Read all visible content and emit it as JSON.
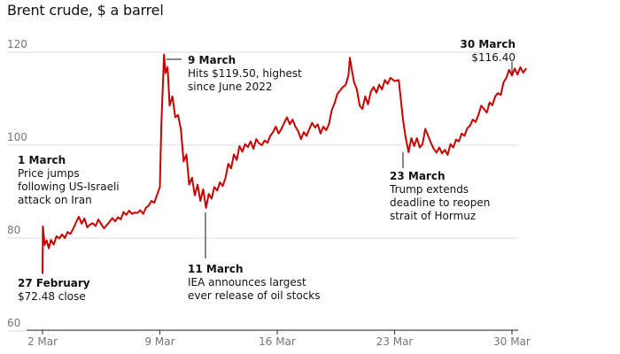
{
  "chart_title": "Brent crude, $ a barrel",
  "chart_data": {
    "type": "line",
    "title": "Brent crude, $ a barrel",
    "xlabel": "",
    "ylabel": "",
    "ylim": [
      60,
      123
    ],
    "xlim": [
      "2026-03-02",
      "2026-03-31"
    ],
    "x_ticks": [
      {
        "date": "2026-03-02",
        "label": "2 Mar"
      },
      {
        "date": "2026-03-09",
        "label": "9 Mar"
      },
      {
        "date": "2026-03-16",
        "label": "16 Mar"
      },
      {
        "date": "2026-03-23",
        "label": "23 Mar"
      },
      {
        "date": "2026-03-30",
        "label": "30 Mar"
      }
    ],
    "y_ticks": [
      60,
      80,
      100,
      120
    ],
    "grid": "horizontal",
    "colors": {
      "line": "#c70000",
      "grid": "#dcdcdc",
      "axis": "#333333",
      "ticks": "#767676",
      "text": "#121212"
    },
    "series": [
      {
        "values": [
          [
            "2026-03-02 00:00",
            72.48
          ],
          [
            "2026-03-02 00:30",
            82.5
          ],
          [
            "2026-03-02 03:00",
            78.5
          ],
          [
            "2026-03-02 06:00",
            79.5
          ],
          [
            "2026-03-02 09:00",
            77.8
          ],
          [
            "2026-03-02 12:00",
            79.6
          ],
          [
            "2026-03-02 16:00",
            78.6
          ],
          [
            "2026-03-02 20:00",
            80.4
          ],
          [
            "2026-03-03 00:00",
            79.9
          ],
          [
            "2026-03-03 04:00",
            80.8
          ],
          [
            "2026-03-03 08:00",
            80.0
          ],
          [
            "2026-03-03 12:00",
            81.3
          ],
          [
            "2026-03-03 16:00",
            80.9
          ],
          [
            "2026-03-03 20:00",
            82.0
          ],
          [
            "2026-03-04 00:00",
            83.4
          ],
          [
            "2026-03-04 04:00",
            84.6
          ],
          [
            "2026-03-04 08:00",
            83.1
          ],
          [
            "2026-03-04 12:00",
            84.2
          ],
          [
            "2026-03-04 16:00",
            82.3
          ],
          [
            "2026-03-04 20:00",
            82.9
          ],
          [
            "2026-03-05 00:00",
            83.2
          ],
          [
            "2026-03-05 04:00",
            82.6
          ],
          [
            "2026-03-05 08:00",
            84.0
          ],
          [
            "2026-03-05 12:00",
            83.0
          ],
          [
            "2026-03-05 16:00",
            82.1
          ],
          [
            "2026-03-05 20:00",
            82.8
          ],
          [
            "2026-03-06 00:00",
            83.5
          ],
          [
            "2026-03-06 04:00",
            84.3
          ],
          [
            "2026-03-06 08:00",
            83.6
          ],
          [
            "2026-03-06 12:00",
            84.5
          ],
          [
            "2026-03-06 16:00",
            84.0
          ],
          [
            "2026-03-06 20:00",
            85.6
          ],
          [
            "2026-03-07 00:00",
            85.0
          ],
          [
            "2026-03-07 04:00",
            85.9
          ],
          [
            "2026-03-07 08:00",
            85.2
          ],
          [
            "2026-03-07 12:00",
            85.5
          ],
          [
            "2026-03-07 16:00",
            85.4
          ],
          [
            "2026-03-07 20:00",
            86.0
          ],
          [
            "2026-03-08 00:00",
            85.2
          ],
          [
            "2026-03-08 04:00",
            86.5
          ],
          [
            "2026-03-08 08:00",
            87.0
          ],
          [
            "2026-03-08 12:00",
            88.0
          ],
          [
            "2026-03-08 16:00",
            87.6
          ],
          [
            "2026-03-08 20:00",
            89.3
          ],
          [
            "2026-03-09 00:00",
            91.0
          ],
          [
            "2026-03-09 02:00",
            104.0
          ],
          [
            "2026-03-09 04:00",
            112.0
          ],
          [
            "2026-03-09 06:00",
            119.5
          ],
          [
            "2026-03-09 08:00",
            115.5
          ],
          [
            "2026-03-09 11:00",
            116.8
          ],
          [
            "2026-03-09 14:00",
            108.5
          ],
          [
            "2026-03-09 18:00",
            110.5
          ],
          [
            "2026-03-09 22:00",
            106.0
          ],
          [
            "2026-03-10 02:00",
            106.5
          ],
          [
            "2026-03-10 06:00",
            103.5
          ],
          [
            "2026-03-10 10:00",
            96.5
          ],
          [
            "2026-03-10 14:00",
            98.0
          ],
          [
            "2026-03-10 18:00",
            91.5
          ],
          [
            "2026-03-10 22:00",
            93.0
          ],
          [
            "2026-03-11 02:00",
            89.2
          ],
          [
            "2026-03-11 06:00",
            91.5
          ],
          [
            "2026-03-11 10:00",
            88.0
          ],
          [
            "2026-03-11 14:00",
            90.5
          ],
          [
            "2026-03-11 18:00",
            86.5
          ],
          [
            "2026-03-11 22:00",
            89.5
          ],
          [
            "2026-03-12 02:00",
            88.5
          ],
          [
            "2026-03-12 06:00",
            91.0
          ],
          [
            "2026-03-12 10:00",
            90.2
          ],
          [
            "2026-03-12 14:00",
            92.0
          ],
          [
            "2026-03-12 18:00",
            91.2
          ],
          [
            "2026-03-12 22:00",
            93.0
          ],
          [
            "2026-03-13 02:00",
            96.0
          ],
          [
            "2026-03-13 06:00",
            95.0
          ],
          [
            "2026-03-13 10:00",
            98.0
          ],
          [
            "2026-03-13 14:00",
            96.8
          ],
          [
            "2026-03-13 18:00",
            99.8
          ],
          [
            "2026-03-13 22:00",
            98.6
          ],
          [
            "2026-03-14 02:00",
            100.2
          ],
          [
            "2026-03-14 06:00",
            99.6
          ],
          [
            "2026-03-14 10:00",
            100.8
          ],
          [
            "2026-03-14 14:00",
            99.2
          ],
          [
            "2026-03-14 18:00",
            101.3
          ],
          [
            "2026-03-14 22:00",
            100.4
          ],
          [
            "2026-03-15 02:00",
            100.0
          ],
          [
            "2026-03-15 06:00",
            101.0
          ],
          [
            "2026-03-15 10:00",
            100.5
          ],
          [
            "2026-03-15 14:00",
            102.0
          ],
          [
            "2026-03-15 18:00",
            102.8
          ],
          [
            "2026-03-15 22:00",
            104.0
          ],
          [
            "2026-03-16 02:00",
            102.5
          ],
          [
            "2026-03-16 06:00",
            103.5
          ],
          [
            "2026-03-16 10:00",
            104.8
          ],
          [
            "2026-03-16 14:00",
            106.0
          ],
          [
            "2026-03-16 18:00",
            104.5
          ],
          [
            "2026-03-16 22:00",
            105.5
          ],
          [
            "2026-03-17 02:00",
            104.0
          ],
          [
            "2026-03-17 06:00",
            103.0
          ],
          [
            "2026-03-17 10:00",
            101.3
          ],
          [
            "2026-03-17 14:00",
            102.8
          ],
          [
            "2026-03-17 18:00",
            102.0
          ],
          [
            "2026-03-17 22:00",
            103.5
          ],
          [
            "2026-03-18 02:00",
            104.8
          ],
          [
            "2026-03-18 06:00",
            103.8
          ],
          [
            "2026-03-18 10:00",
            104.5
          ],
          [
            "2026-03-18 14:00",
            102.5
          ],
          [
            "2026-03-18 18:00",
            104.0
          ],
          [
            "2026-03-18 22:00",
            103.2
          ],
          [
            "2026-03-19 02:00",
            104.5
          ],
          [
            "2026-03-19 06:00",
            107.5
          ],
          [
            "2026-03-19 10:00",
            109.0
          ],
          [
            "2026-03-19 14:00",
            111.0
          ],
          [
            "2026-03-19 18:00",
            111.8
          ],
          [
            "2026-03-19 22:00",
            112.5
          ],
          [
            "2026-03-20 02:00",
            113.0
          ],
          [
            "2026-03-20 06:00",
            115.0
          ],
          [
            "2026-03-20 08:00",
            118.8
          ],
          [
            "2026-03-20 11:00",
            116.0
          ],
          [
            "2026-03-20 14:00",
            113.5
          ],
          [
            "2026-03-20 18:00",
            112.0
          ],
          [
            "2026-03-20 22:00",
            108.5
          ],
          [
            "2026-03-21 02:00",
            107.8
          ],
          [
            "2026-03-21 06:00",
            110.5
          ],
          [
            "2026-03-21 10:00",
            108.8
          ],
          [
            "2026-03-21 14:00",
            111.5
          ],
          [
            "2026-03-21 18:00",
            112.5
          ],
          [
            "2026-03-21 22:00",
            111.3
          ],
          [
            "2026-03-22 02:00",
            113.0
          ],
          [
            "2026-03-22 06:00",
            112.0
          ],
          [
            "2026-03-22 10:00",
            114.0
          ],
          [
            "2026-03-22 14:00",
            113.2
          ],
          [
            "2026-03-22 18:00",
            114.5
          ],
          [
            "2026-03-23 00:00",
            113.8
          ],
          [
            "2026-03-23 06:00",
            114.0
          ],
          [
            "2026-03-23 12:00",
            105.5
          ],
          [
            "2026-03-23 16:00",
            101.5
          ],
          [
            "2026-03-23 20:00",
            98.5
          ],
          [
            "2026-03-24 00:00",
            101.5
          ],
          [
            "2026-03-24 04:00",
            99.8
          ],
          [
            "2026-03-24 08:00",
            101.5
          ],
          [
            "2026-03-24 12:00",
            99.5
          ],
          [
            "2026-03-24 16:00",
            100.2
          ],
          [
            "2026-03-24 20:00",
            103.5
          ],
          [
            "2026-03-25 00:00",
            102.0
          ],
          [
            "2026-03-25 04:00",
            100.5
          ],
          [
            "2026-03-25 08:00",
            99.2
          ],
          [
            "2026-03-25 12:00",
            98.4
          ],
          [
            "2026-03-25 16:00",
            99.5
          ],
          [
            "2026-03-25 20:00",
            98.2
          ],
          [
            "2026-03-26 00:00",
            99.0
          ],
          [
            "2026-03-26 04:00",
            97.9
          ],
          [
            "2026-03-26 08:00",
            100.2
          ],
          [
            "2026-03-26 12:00",
            99.5
          ],
          [
            "2026-03-26 16:00",
            101.2
          ],
          [
            "2026-03-26 20:00",
            100.8
          ],
          [
            "2026-03-27 00:00",
            102.5
          ],
          [
            "2026-03-27 04:00",
            102.0
          ],
          [
            "2026-03-27 08:00",
            103.6
          ],
          [
            "2026-03-27 12:00",
            104.2
          ],
          [
            "2026-03-27 16:00",
            105.5
          ],
          [
            "2026-03-27 20:00",
            105.0
          ],
          [
            "2026-03-28 00:00",
            106.5
          ],
          [
            "2026-03-28 04:00",
            108.5
          ],
          [
            "2026-03-28 08:00",
            107.8
          ],
          [
            "2026-03-28 12:00",
            107.0
          ],
          [
            "2026-03-28 16:00",
            109.2
          ],
          [
            "2026-03-28 20:00",
            108.6
          ],
          [
            "2026-03-29 00:00",
            110.5
          ],
          [
            "2026-03-29 04:00",
            111.2
          ],
          [
            "2026-03-29 08:00",
            110.8
          ],
          [
            "2026-03-29 12:00",
            113.5
          ],
          [
            "2026-03-29 16:00",
            114.5
          ],
          [
            "2026-03-29 20:00",
            116.2
          ],
          [
            "2026-03-30 00:00",
            115.0
          ],
          [
            "2026-03-30 04:00",
            116.5
          ],
          [
            "2026-03-30 08:00",
            115.2
          ],
          [
            "2026-03-30 12:00",
            116.8
          ],
          [
            "2026-03-30 16:00",
            115.6
          ],
          [
            "2026-03-30 20:00",
            116.4
          ]
        ]
      }
    ],
    "annotations": [
      {
        "title": "9 March",
        "lines": [
          "Hits $119.50, highest",
          "since June 2022"
        ],
        "date": "2026-03-09 06:00",
        "value": 119.5,
        "leader": "horizontal"
      },
      {
        "title": "1 March",
        "lines": [
          "Price jumps",
          "following US-Israeli",
          "attack on Iran"
        ],
        "date": "2026-03-02 00:30",
        "value": 82.5,
        "leader": "none"
      },
      {
        "title": "27 February",
        "lines": [
          "$72.48 close"
        ],
        "date": "2026-03-02 00:00",
        "value": 72.48,
        "leader": "none"
      },
      {
        "title": "11 March",
        "lines": [
          "IEA announces largest",
          "ever release of oil stocks"
        ],
        "date": "2026-03-11 18:00",
        "value": 86.5,
        "leader": "vertical-down"
      },
      {
        "title": "23 March",
        "lines": [
          "Trump extends",
          "deadline to reopen",
          "strait of Hormuz"
        ],
        "date": "2026-03-24 00:00",
        "value": 101.5,
        "leader": "vertical-down"
      },
      {
        "title": "30 March",
        "lines": [
          "$116.40"
        ],
        "date": "2026-03-30 20:00",
        "value": 116.4,
        "leader": "vertical-up"
      }
    ]
  }
}
